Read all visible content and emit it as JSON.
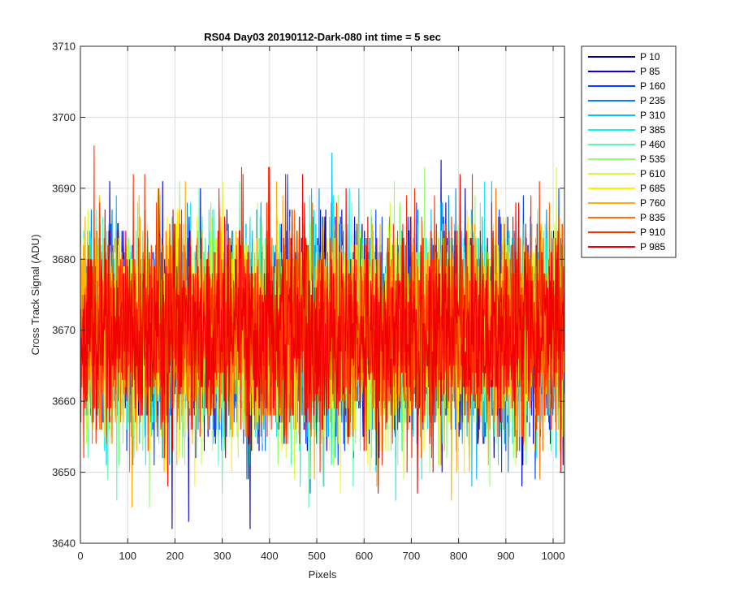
{
  "chart_data": {
    "type": "line",
    "title": "RS04 Day03 20190112-Dark-080 int time = 5 sec",
    "xlabel": "Pixels",
    "ylabel": "Cross Track Signal (ADU)",
    "xlim": [
      0,
      1024
    ],
    "ylim": [
      3640,
      3710
    ],
    "xticks": [
      0,
      100,
      200,
      300,
      400,
      500,
      600,
      700,
      800,
      900,
      1000
    ],
    "yticks": [
      3640,
      3650,
      3660,
      3670,
      3680,
      3690,
      3700,
      3710
    ],
    "grid": true,
    "legend_position": "outside-top-right",
    "noise_model": {
      "mean": 3670,
      "std": 7,
      "min": 3642,
      "max": 3701,
      "points_per_series": 1024
    },
    "series": [
      {
        "name": "P 10",
        "color": "#00008F"
      },
      {
        "name": "P 85",
        "color": "#0000E0"
      },
      {
        "name": "P 160",
        "color": "#0040FF"
      },
      {
        "name": "P 235",
        "color": "#0080FF"
      },
      {
        "name": "P 310",
        "color": "#00BFFF"
      },
      {
        "name": "P 385",
        "color": "#10F0F0"
      },
      {
        "name": "P 460",
        "color": "#50FFB0"
      },
      {
        "name": "P 535",
        "color": "#90FF70"
      },
      {
        "name": "P 610",
        "color": "#CFFF30"
      },
      {
        "name": "P 685",
        "color": "#FFF000"
      },
      {
        "name": "P 760",
        "color": "#FFB000"
      },
      {
        "name": "P 835",
        "color": "#FF7000"
      },
      {
        "name": "P 910",
        "color": "#FF3000"
      },
      {
        "name": "P 985",
        "color": "#F00000"
      }
    ]
  }
}
